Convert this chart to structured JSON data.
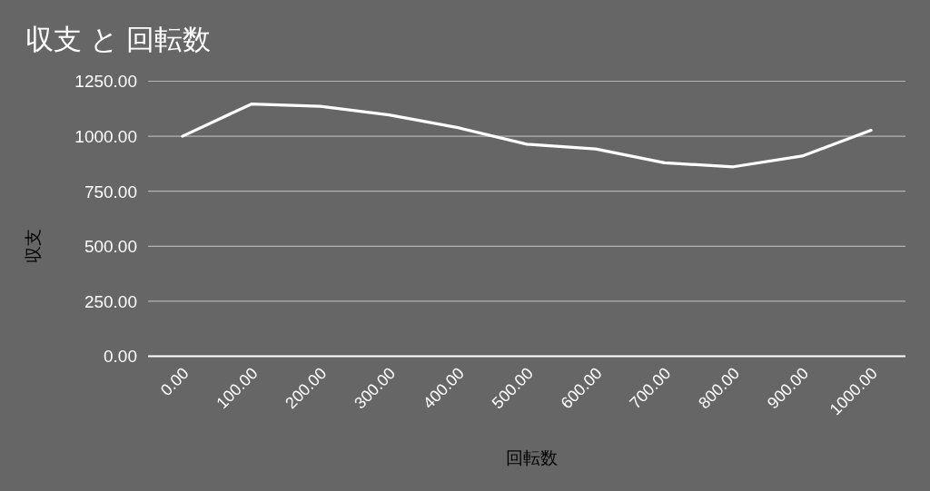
{
  "chart_data": {
    "type": "line",
    "title": "収支 と 回転数",
    "xlabel": "回転数",
    "ylabel": "収支",
    "x": [
      0,
      100,
      200,
      300,
      400,
      500,
      600,
      700,
      800,
      900,
      1000
    ],
    "series": [
      {
        "color": "#ffffff",
        "values": [
          1000,
          1146,
          1136,
          1097,
          1039,
          964,
          942,
          879,
          861,
          910,
          1027
        ]
      }
    ],
    "xlim": [
      -50,
      1050
    ],
    "ylim": [
      0,
      1250
    ],
    "xticks": [
      {
        "value": 0,
        "label": "0.00"
      },
      {
        "value": 100,
        "label": "100.00"
      },
      {
        "value": 200,
        "label": "200.00"
      },
      {
        "value": 300,
        "label": "300.00"
      },
      {
        "value": 400,
        "label": "400.00"
      },
      {
        "value": 500,
        "label": "500.00"
      },
      {
        "value": 600,
        "label": "600.00"
      },
      {
        "value": 700,
        "label": "700.00"
      },
      {
        "value": 800,
        "label": "800.00"
      },
      {
        "value": 900,
        "label": "900.00"
      },
      {
        "value": 1000,
        "label": "1000.00"
      }
    ],
    "yticks": [
      {
        "value": 0,
        "label": "0.00"
      },
      {
        "value": 250,
        "label": "250.00"
      },
      {
        "value": 500,
        "label": "500.00"
      },
      {
        "value": 750,
        "label": "750.00"
      },
      {
        "value": 1000,
        "label": "1000.00"
      },
      {
        "value": 1250,
        "label": "1250.00"
      }
    ],
    "grid": "y",
    "line_style": "solid"
  }
}
